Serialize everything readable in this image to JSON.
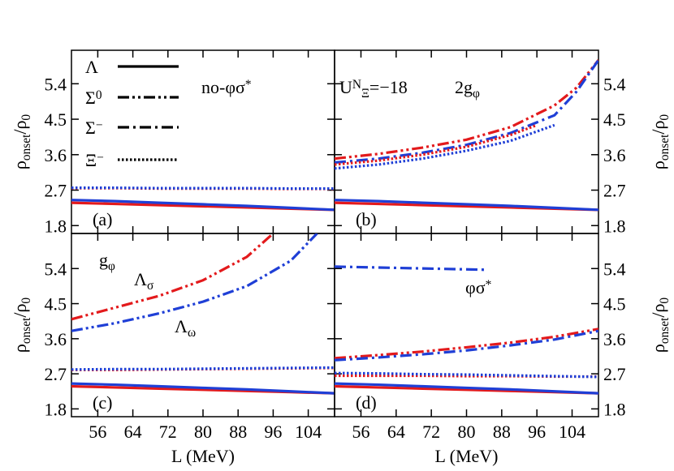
{
  "chart_data": [
    {
      "type": "line",
      "label": "(a)",
      "xlim": [
        50,
        110
      ],
      "ylim": [
        1.6,
        6.25
      ],
      "xticks": [
        56,
        64,
        72,
        80,
        88,
        96,
        104
      ],
      "yticks": [
        1.8,
        2.7,
        3.6,
        4.5,
        5.4
      ],
      "ylabel": [
        {
          "t": "ρ"
        },
        {
          "t": "onset",
          "s": "sub"
        },
        {
          "t": "/ρ"
        },
        {
          "t": "0",
          "s": "sub"
        }
      ],
      "annotations": [
        {
          "parts": [
            {
              "t": "no-φσ"
            },
            {
              "t": "*",
              "s": "sup"
            }
          ]
        }
      ],
      "legend": [
        {
          "parts": [
            {
              "t": "Λ"
            }
          ],
          "dash": "solid"
        },
        {
          "parts": [
            {
              "t": "Σ"
            },
            {
              "t": "0",
              "s": "sup"
            }
          ],
          "dash": "dashdotdot"
        },
        {
          "parts": [
            {
              "t": "Σ"
            },
            {
              "t": "−",
              "s": "sup"
            }
          ],
          "dash": "dashdot"
        },
        {
          "parts": [
            {
              "t": "Ξ"
            },
            {
              "t": "−",
              "s": "sup"
            }
          ],
          "dash": "dotted"
        }
      ],
      "series": [
        {
          "color": "#e31a1c",
          "dash": "solid",
          "x": [
            50,
            60,
            70,
            80,
            90,
            100,
            110
          ],
          "values": [
            2.38,
            2.35,
            2.32,
            2.29,
            2.26,
            2.23,
            2.2
          ]
        },
        {
          "color": "#1f3fd6",
          "dash": "solid",
          "x": [
            50,
            60,
            70,
            80,
            90,
            100,
            110
          ],
          "values": [
            2.45,
            2.42,
            2.38,
            2.34,
            2.3,
            2.25,
            2.2
          ]
        },
        {
          "color": "#e31a1c",
          "dash": "dotted",
          "x": [
            50,
            60,
            70,
            80,
            90,
            100,
            110
          ],
          "values": [
            2.75,
            2.75,
            2.74,
            2.74,
            2.74,
            2.73,
            2.73
          ]
        },
        {
          "color": "#1f3fd6",
          "dash": "dotted",
          "x": [
            50,
            60,
            70,
            80,
            90,
            100,
            110
          ],
          "values": [
            2.76,
            2.76,
            2.75,
            2.75,
            2.75,
            2.74,
            2.74
          ]
        }
      ]
    },
    {
      "type": "line",
      "label": "(b)",
      "xlim": [
        50,
        110
      ],
      "ylim": [
        1.6,
        6.25
      ],
      "xticks": [
        56,
        64,
        72,
        80,
        88,
        96,
        104
      ],
      "yticks": [
        1.8,
        2.7,
        3.6,
        4.5,
        5.4
      ],
      "ylabel": [
        {
          "t": "ρ"
        },
        {
          "t": "onset",
          "s": "sub"
        },
        {
          "t": "/ρ"
        },
        {
          "t": "0",
          "s": "sub"
        }
      ],
      "annotations": [
        {
          "parts": [
            {
              "t": "U"
            },
            {
              "t": "N",
              "s": "sup"
            },
            {
              "t": "Ξ",
              "s": "sub"
            },
            {
              "t": "=−18"
            }
          ]
        },
        {
          "parts": [
            {
              "t": "2g"
            },
            {
              "t": "φ",
              "s": "sub"
            }
          ]
        }
      ],
      "series": [
        {
          "color": "#e31a1c",
          "dash": "solid",
          "x": [
            50,
            60,
            70,
            80,
            90,
            100,
            110
          ],
          "values": [
            2.38,
            2.35,
            2.32,
            2.29,
            2.26,
            2.23,
            2.2
          ]
        },
        {
          "color": "#1f3fd6",
          "dash": "solid",
          "x": [
            50,
            60,
            70,
            80,
            90,
            100,
            110
          ],
          "values": [
            2.45,
            2.42,
            2.38,
            2.34,
            2.3,
            2.25,
            2.2
          ]
        },
        {
          "color": "#e31a1c",
          "dash": "dashdotdot",
          "x": [
            50,
            60,
            70,
            80,
            90,
            100,
            105,
            110
          ],
          "values": [
            3.5,
            3.62,
            3.78,
            3.98,
            4.3,
            4.85,
            5.3,
            6.0
          ]
        },
        {
          "color": "#1f3fd6",
          "dash": "dashdot",
          "x": [
            50,
            60,
            70,
            80,
            90,
            100,
            105,
            110
          ],
          "values": [
            3.4,
            3.5,
            3.65,
            3.85,
            4.15,
            4.6,
            5.2,
            6.0
          ]
        },
        {
          "color": "#e31a1c",
          "dash": "dotted",
          "x": [
            50,
            60,
            70,
            80,
            90,
            96
          ],
          "values": [
            3.35,
            3.45,
            3.6,
            3.8,
            4.1,
            4.35
          ]
        },
        {
          "color": "#1f3fd6",
          "dash": "dotted",
          "x": [
            50,
            60,
            70,
            80,
            90,
            100
          ],
          "values": [
            3.25,
            3.35,
            3.5,
            3.7,
            3.95,
            4.35
          ]
        }
      ]
    },
    {
      "type": "line",
      "label": "(c)",
      "xlim": [
        50,
        110
      ],
      "ylim": [
        1.6,
        6.3
      ],
      "xticks": [
        56,
        64,
        72,
        80,
        88,
        96,
        104
      ],
      "yticks": [
        1.8,
        2.7,
        3.6,
        4.5,
        5.4
      ],
      "xlabel": "L (MeV)",
      "ylabel": [
        {
          "t": "ρ"
        },
        {
          "t": "onset",
          "s": "sub"
        },
        {
          "t": "/ρ"
        },
        {
          "t": "0",
          "s": "sub"
        }
      ],
      "annotations": [
        {
          "parts": [
            {
              "t": "g"
            },
            {
              "t": "φ",
              "s": "sub"
            }
          ]
        },
        {
          "parts": [
            {
              "t": "Λ"
            },
            {
              "t": "σ",
              "s": "sub"
            }
          ],
          "color": "#e31a1c"
        },
        {
          "parts": [
            {
              "t": "Λ"
            },
            {
              "t": "ω",
              "s": "sub"
            }
          ],
          "color": "#1f3fd6"
        }
      ],
      "series": [
        {
          "color": "#e31a1c",
          "dash": "solid",
          "x": [
            50,
            60,
            70,
            80,
            90,
            100,
            110
          ],
          "values": [
            2.38,
            2.35,
            2.32,
            2.29,
            2.26,
            2.23,
            2.2
          ]
        },
        {
          "color": "#1f3fd6",
          "dash": "solid",
          "x": [
            50,
            60,
            70,
            80,
            90,
            100,
            110
          ],
          "values": [
            2.45,
            2.42,
            2.38,
            2.34,
            2.3,
            2.25,
            2.2
          ]
        },
        {
          "color": "#e31a1c",
          "dash": "dashdotdot",
          "x": [
            50,
            60,
            70,
            80,
            90,
            96
          ],
          "values": [
            4.1,
            4.4,
            4.7,
            5.1,
            5.7,
            6.3
          ]
        },
        {
          "color": "#1f3fd6",
          "dash": "dashdotdot",
          "x": [
            50,
            60,
            70,
            80,
            90,
            100,
            106
          ],
          "values": [
            3.8,
            4.0,
            4.25,
            4.55,
            4.95,
            5.6,
            6.3
          ]
        },
        {
          "color": "#e31a1c",
          "dash": "dotted",
          "x": [
            50,
            60,
            70,
            80,
            90,
            100,
            110
          ],
          "values": [
            2.8,
            2.8,
            2.81,
            2.82,
            2.83,
            2.84,
            2.85
          ]
        },
        {
          "color": "#1f3fd6",
          "dash": "dotted",
          "x": [
            50,
            60,
            70,
            80,
            90,
            100,
            110
          ],
          "values": [
            2.81,
            2.82,
            2.82,
            2.83,
            2.84,
            2.85,
            2.86
          ]
        }
      ]
    },
    {
      "type": "line",
      "label": "(d)",
      "xlim": [
        50,
        110
      ],
      "ylim": [
        1.6,
        6.3
      ],
      "xticks": [
        56,
        64,
        72,
        80,
        88,
        96,
        104
      ],
      "yticks": [
        1.8,
        2.7,
        3.6,
        4.5,
        5.4
      ],
      "xlabel": "L (MeV)",
      "ylabel": [
        {
          "t": "ρ"
        },
        {
          "t": "onset",
          "s": "sub"
        },
        {
          "t": "/ρ"
        },
        {
          "t": "0",
          "s": "sub"
        }
      ],
      "annotations": [
        {
          "parts": [
            {
              "t": "φσ"
            },
            {
              "t": "*",
              "s": "sup"
            }
          ]
        }
      ],
      "series": [
        {
          "color": "#e31a1c",
          "dash": "solid",
          "x": [
            50,
            60,
            70,
            80,
            90,
            100,
            110
          ],
          "values": [
            2.38,
            2.35,
            2.32,
            2.29,
            2.26,
            2.23,
            2.2
          ]
        },
        {
          "color": "#1f3fd6",
          "dash": "solid",
          "x": [
            50,
            60,
            70,
            80,
            90,
            100,
            110
          ],
          "values": [
            2.45,
            2.42,
            2.38,
            2.34,
            2.3,
            2.25,
            2.2
          ]
        },
        {
          "color": "#1f3fd6",
          "dash": "dashdot",
          "x": [
            50,
            84
          ],
          "values": [
            5.45,
            5.37
          ]
        },
        {
          "color": "#e31a1c",
          "dash": "dashdotdot",
          "x": [
            50,
            60,
            70,
            80,
            90,
            100,
            110
          ],
          "values": [
            3.1,
            3.18,
            3.27,
            3.38,
            3.5,
            3.65,
            3.85
          ]
        },
        {
          "color": "#1f3fd6",
          "dash": "dashdot",
          "x": [
            50,
            60,
            70,
            80,
            90,
            100,
            110
          ],
          "values": [
            3.05,
            3.12,
            3.2,
            3.3,
            3.43,
            3.58,
            3.8
          ]
        },
        {
          "color": "#e31a1c",
          "dash": "dotted",
          "x": [
            50,
            60,
            70,
            80,
            90,
            100,
            110
          ],
          "values": [
            2.65,
            2.65,
            2.65,
            2.64,
            2.64,
            2.63,
            2.63
          ]
        },
        {
          "color": "#1f3fd6",
          "dash": "dotted",
          "x": [
            50,
            60,
            70,
            80,
            90,
            100,
            110
          ],
          "values": [
            2.72,
            2.71,
            2.69,
            2.68,
            2.66,
            2.64,
            2.62
          ]
        }
      ]
    }
  ]
}
